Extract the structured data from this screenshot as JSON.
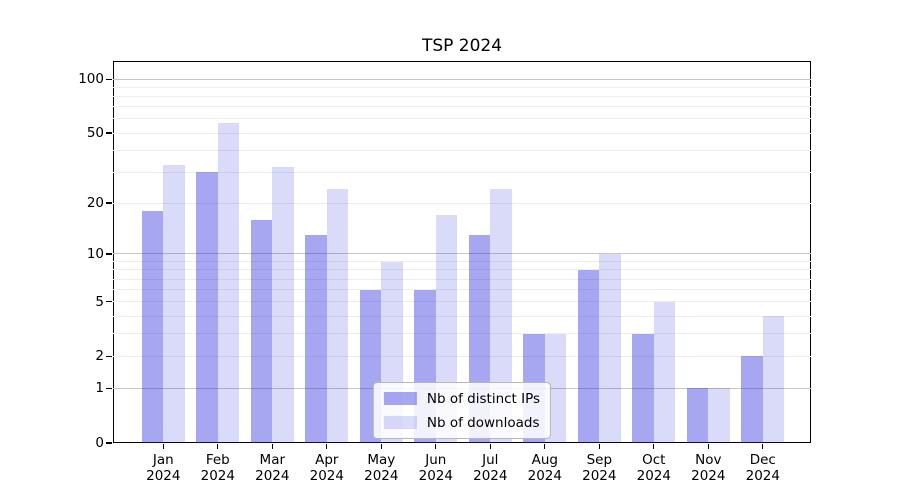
{
  "title": "TSP 2024",
  "colors": {
    "bar_ips": "rgba(34,34,221,0.40)",
    "bar_downloads": "rgba(34,34,221,0.17)",
    "grid_major": "#c6c6c6",
    "grid_minor": "#ededed",
    "axis": "#000000",
    "legend_border": "#b7b7b7",
    "text": "#000000"
  },
  "legend": {
    "items": [
      {
        "label": "Nb of distinct IPs",
        "color": "rgba(34,34,221,0.40)"
      },
      {
        "label": "Nb of downloads",
        "color": "rgba(34,34,221,0.17)"
      }
    ]
  },
  "chart_data": {
    "type": "bar",
    "title": "TSP 2024",
    "categories": [
      "Jan",
      "Feb",
      "Mar",
      "Apr",
      "May",
      "Jun",
      "Jul",
      "Aug",
      "Sep",
      "Oct",
      "Nov",
      "Dec"
    ],
    "x_tick_second_line": "2024",
    "series": [
      {
        "name": "Nb of distinct IPs",
        "values": [
          18,
          30,
          16,
          13,
          6,
          6,
          13,
          3,
          8,
          3,
          1,
          2
        ]
      },
      {
        "name": "Nb of downloads",
        "values": [
          33,
          57,
          32,
          24,
          9,
          17,
          24,
          3,
          10,
          5,
          1,
          4
        ]
      }
    ],
    "y_scale": "log1p",
    "ylim": [
      0,
      127
    ],
    "y_ticks": [
      0,
      1,
      2,
      5,
      10,
      20,
      50,
      100
    ],
    "grid": {
      "major": [
        1,
        10,
        100
      ],
      "minor": [
        2,
        3,
        4,
        5,
        6,
        7,
        8,
        9,
        20,
        30,
        40,
        50,
        60,
        70,
        80,
        90
      ]
    },
    "grid_on": true,
    "legend_position": "lower center"
  }
}
